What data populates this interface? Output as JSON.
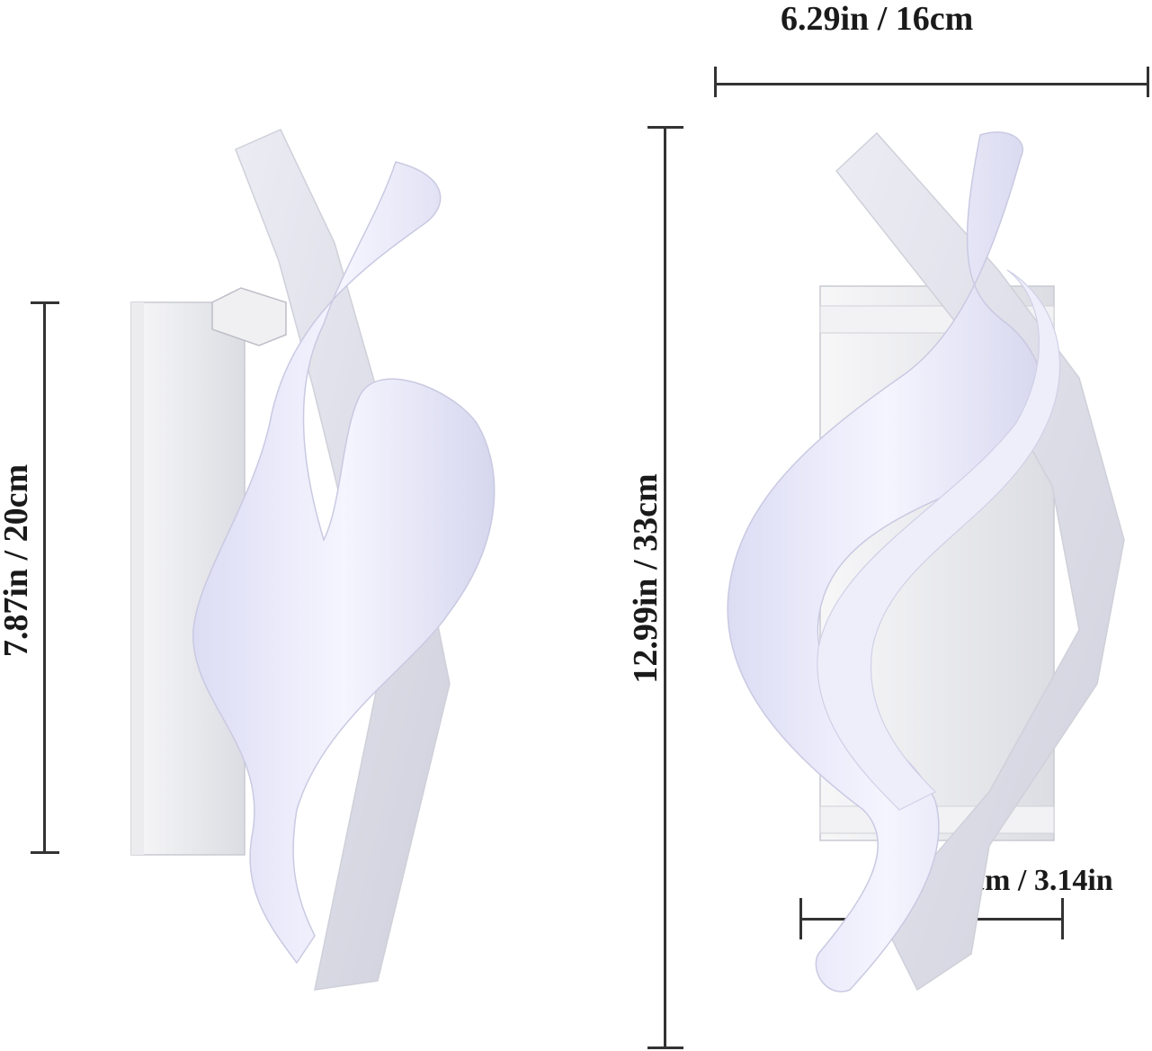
{
  "dimensions": {
    "width_top": "6.29in / 16cm",
    "height_left": "7.87in / 20cm",
    "height_right": "12.99in / 33cm",
    "base_width": "8cm / 3.14in"
  },
  "colors": {
    "background": "#ffffff",
    "lamp_body": "#f4f4f6",
    "lamp_shadow": "#d9dae2",
    "glow": "#e6e6fb",
    "line": "#333333"
  }
}
